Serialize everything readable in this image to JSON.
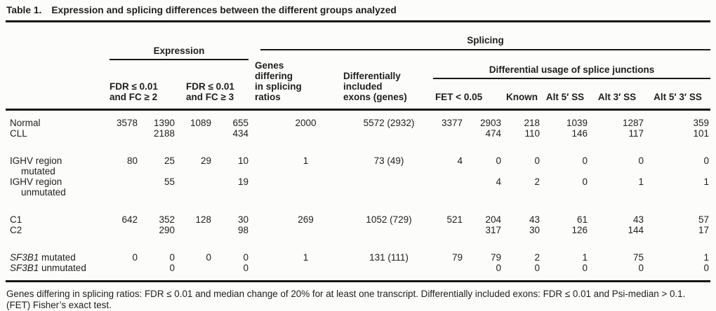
{
  "caption": {
    "label": "Table 1.",
    "text": "Expression and splicing differences between the different groups analyzed"
  },
  "header": {
    "expression_group": "Expression",
    "splicing_group": "Splicing",
    "expression_cols": [
      {
        "line1": "FDR ≤ 0.01",
        "line2": "and FC ≥ 2"
      },
      {
        "line1": "FDR ≤ 0.01",
        "line2": "and FC ≥ 3"
      }
    ],
    "genes_differing": {
      "line1": "Genes differing",
      "line2": "in splicing ratios"
    },
    "included_exons": {
      "line1": "Differentially",
      "line2": "included",
      "line3": "exons (genes)"
    },
    "junctions_group": "Differential usage of splice junctions",
    "junction_cols": [
      "FET < 0.05",
      "Known",
      "Alt 5′ SS",
      "Alt 3′ SS",
      "Alt 5′ 3′ SS"
    ]
  },
  "groups": [
    {
      "rows": [
        {
          "label": {
            "line1": "Normal"
          },
          "cells": [
            "3578",
            "1390",
            "1089",
            "655",
            "2000",
            "5572 (2932)",
            "3377",
            "2903",
            "218",
            "1039",
            "1287",
            "359"
          ]
        },
        {
          "label": {
            "line1": "CLL"
          },
          "cells": [
            "",
            "2188",
            "",
            "434",
            "",
            "",
            "",
            "474",
            "110",
            "146",
            "117",
            "101"
          ]
        }
      ]
    },
    {
      "rows": [
        {
          "label": {
            "line1": "IGHV region",
            "line2": "mutated"
          },
          "cells": [
            "80",
            "25",
            "29",
            "10",
            "1",
            "73 (49)",
            "4",
            "0",
            "0",
            "0",
            "0",
            "0"
          ]
        },
        {
          "label": {
            "line1": "IGHV region",
            "line2": "unmutated"
          },
          "cells": [
            "",
            "55",
            "",
            "19",
            "",
            "",
            "",
            "4",
            "2",
            "0",
            "1",
            "1"
          ]
        }
      ]
    },
    {
      "rows": [
        {
          "label": {
            "line1": "C1"
          },
          "cells": [
            "642",
            "352",
            "128",
            "30",
            "269",
            "1052 (729)",
            "521",
            "204",
            "43",
            "61",
            "43",
            "57"
          ]
        },
        {
          "label": {
            "line1": "C2"
          },
          "cells": [
            "",
            "290",
            "",
            "98",
            "",
            "",
            "",
            "317",
            "30",
            "126",
            "144",
            "17"
          ]
        }
      ]
    },
    {
      "rows": [
        {
          "label": {
            "gene": "SF3B1",
            "rest": " mutated"
          },
          "cells": [
            "0",
            "0",
            "0",
            "0",
            "1",
            "131 (111)",
            "79",
            "79",
            "2",
            "1",
            "75",
            "1"
          ]
        },
        {
          "label": {
            "gene": "SF3B1",
            "rest": " unmutated"
          },
          "cells": [
            "",
            "0",
            "",
            "0",
            "",
            "",
            "",
            "0",
            "0",
            "0",
            "0",
            "0"
          ]
        }
      ]
    }
  ],
  "footnote": "Genes differing in splicing ratios: FDR ≤ 0.01 and median change of 20% for at least one transcript. Differentially included exons: FDR ≤ 0.01 and Psi-median > 0.1. (FET) Fisher’s exact test."
}
